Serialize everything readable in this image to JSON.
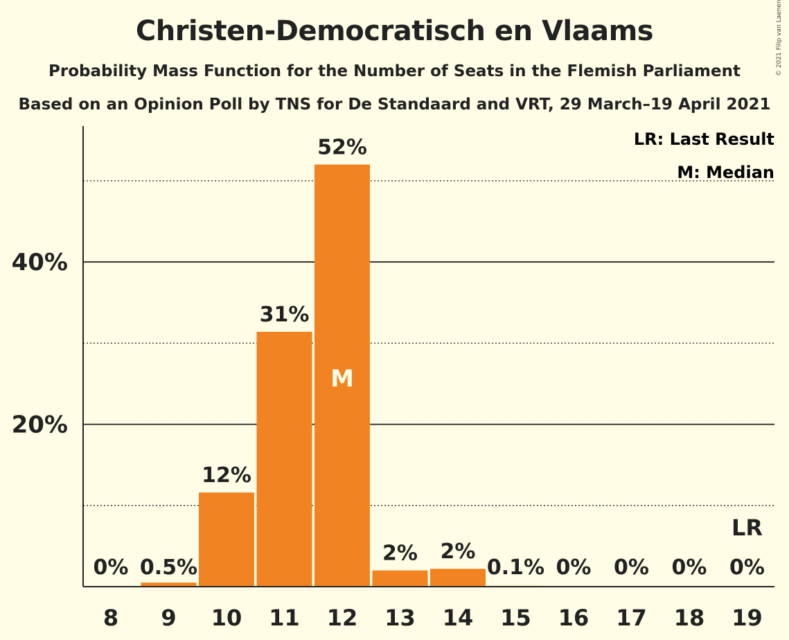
{
  "title": "Christen-Democratisch en Vlaams",
  "subtitle": "Probability Mass Function for the Number of Seats in the Flemish Parliament",
  "subtitle2": "Based on an Opinion Poll by TNS for De Standaard and VRT, 29 March–19 April 2021",
  "copyright": "© 2021 Filip van Laenen",
  "legend": {
    "last_result": "LR: Last Result",
    "median": "M: Median"
  },
  "colors": {
    "bar": "#f28322",
    "background": "#fffde6",
    "text": "#222222"
  },
  "chart_data": {
    "type": "bar",
    "categories": [
      "8",
      "9",
      "10",
      "11",
      "12",
      "13",
      "14",
      "15",
      "16",
      "17",
      "18",
      "19"
    ],
    "values": [
      0,
      0.5,
      11.6,
      31.4,
      52.0,
      2.0,
      2.2,
      0.1,
      0,
      0,
      0,
      0
    ],
    "data_labels": [
      "0%",
      "0.5%",
      "12%",
      "31%",
      "52%",
      "2%",
      "2%",
      "0.1%",
      "0%",
      "0%",
      "0%",
      "0%"
    ],
    "ylim": [
      0,
      56
    ],
    "y_ticks": [
      {
        "value": 20,
        "label": "20%"
      },
      {
        "value": 40,
        "label": "40%"
      }
    ],
    "minor_gridlines": [
      10,
      30,
      50
    ],
    "median_category": "12",
    "median_marker": "M",
    "last_result_category": "19",
    "last_result_marker": "LR",
    "legend_position": "top-right"
  }
}
